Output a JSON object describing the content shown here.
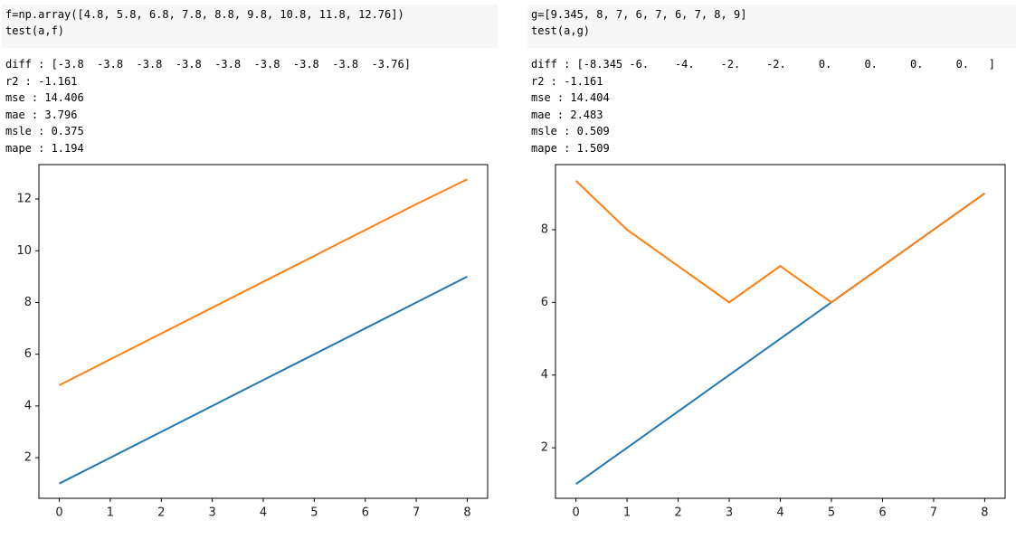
{
  "cells": [
    {
      "code": [
        "f=np.array([4.8, 5.8, 6.8, 7.8, 8.8, 9.8, 10.8, 11.8, 12.76])",
        "test(a,f)"
      ],
      "output": [
        "diff : [-3.8  -3.8  -3.8  -3.8  -3.8  -3.8  -3.8  -3.8  -3.76]",
        "r2 : -1.161",
        "mse : 14.406",
        "mae : 3.796",
        "msle : 0.375",
        "mape : 1.194"
      ]
    },
    {
      "code": [
        "g=[9.345, 8, 7, 6, 7, 6, 7, 8, 9]",
        "test(a,g)"
      ],
      "output": [
        "diff : [-8.345 -6.    -4.    -2.    -2.     0.     0.     0.     0.   ]",
        "r2 : -1.161",
        "mse : 14.404",
        "mae : 2.483",
        "msle : 0.509",
        "mape : 1.509"
      ]
    }
  ],
  "chart_data": [
    {
      "type": "line",
      "x": [
        0,
        1,
        2,
        3,
        4,
        5,
        6,
        7,
        8
      ],
      "series": [
        {
          "color": "#1f77b4",
          "values": [
            1,
            2,
            3,
            4,
            5,
            6,
            7,
            8,
            9
          ]
        },
        {
          "color": "#ff7f0e",
          "values": [
            4.8,
            5.8,
            6.8,
            7.8,
            8.8,
            9.8,
            10.8,
            11.8,
            12.76
          ]
        }
      ],
      "xlim": [
        -0.4,
        8.4
      ],
      "xticks": [
        0,
        1,
        2,
        3,
        4,
        5,
        6,
        7,
        8
      ],
      "ylim": [
        0.43,
        13.33
      ],
      "yticks": [
        2,
        4,
        6,
        8,
        10,
        12
      ]
    },
    {
      "type": "line",
      "x": [
        0,
        1,
        2,
        3,
        4,
        5,
        6,
        7,
        8
      ],
      "series": [
        {
          "color": "#1f77b4",
          "values": [
            1,
            2,
            3,
            4,
            5,
            6,
            7,
            8,
            9
          ]
        },
        {
          "color": "#ff7f0e",
          "values": [
            9.345,
            8,
            7,
            6,
            7,
            6,
            7,
            8,
            9
          ]
        }
      ],
      "xlim": [
        -0.4,
        8.4
      ],
      "xticks": [
        0,
        1,
        2,
        3,
        4,
        5,
        6,
        7,
        8
      ],
      "ylim": [
        0.61,
        9.79
      ],
      "yticks": [
        2,
        4,
        6,
        8
      ]
    }
  ]
}
